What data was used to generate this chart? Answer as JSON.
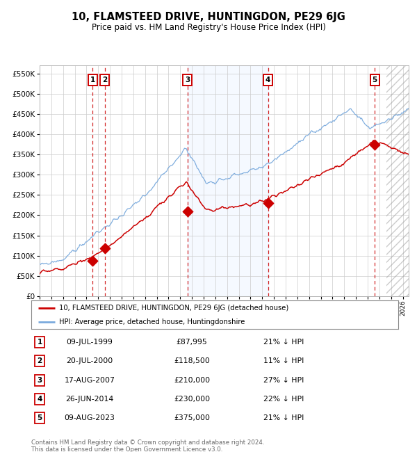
{
  "title": "10, FLAMSTEED DRIVE, HUNTINGDON, PE29 6JG",
  "subtitle": "Price paid vs. HM Land Registry's House Price Index (HPI)",
  "hpi_label": "HPI: Average price, detached house, Huntingdonshire",
  "price_label": "10, FLAMSTEED DRIVE, HUNTINGDON, PE29 6JG (detached house)",
  "footer": "Contains HM Land Registry data © Crown copyright and database right 2024.\nThis data is licensed under the Open Government Licence v3.0.",
  "transactions": [
    {
      "num": 1,
      "date": "09-JUL-1999",
      "year": 1999.53,
      "price": 87995,
      "pct": "21% ↓ HPI"
    },
    {
      "num": 2,
      "date": "20-JUL-2000",
      "year": 2000.55,
      "price": 118500,
      "pct": "11% ↓ HPI"
    },
    {
      "num": 3,
      "date": "17-AUG-2007",
      "year": 2007.63,
      "price": 210000,
      "pct": "27% ↓ HPI"
    },
    {
      "num": 4,
      "date": "26-JUN-2014",
      "year": 2014.49,
      "price": 230000,
      "pct": "22% ↓ HPI"
    },
    {
      "num": 5,
      "date": "09-AUG-2023",
      "year": 2023.6,
      "price": 375000,
      "pct": "21% ↓ HPI"
    }
  ],
  "ylim": [
    0,
    570000
  ],
  "xlim_start": 1995.0,
  "xlim_end": 2026.5,
  "hpi_color": "#7aaadd",
  "price_color": "#cc0000",
  "bg_color": "#ffffff",
  "grid_color": "#cccccc",
  "shade_color": "#ddeeff",
  "vline_color": "#cc0000",
  "hatch_region_start": 2024.6,
  "yticks": [
    0,
    50000,
    100000,
    150000,
    200000,
    250000,
    300000,
    350000,
    400000,
    450000,
    500000,
    550000
  ]
}
